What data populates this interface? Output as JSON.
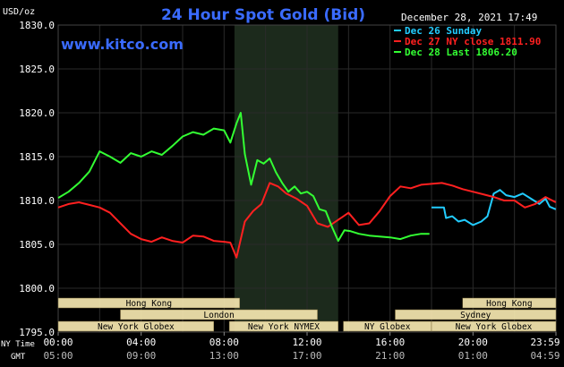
{
  "header": {
    "unit": "USD/oz",
    "title": "24 Hour Spot Gold (Bid)",
    "date": "December 28, 2021 17:49",
    "site": "www.kitco.com"
  },
  "colors": {
    "background": "#000000",
    "grid": "#2a2a2a",
    "shaded": "#1c2a1c",
    "title": "#3a6bff",
    "dec26": "#22ccff",
    "dec27": "#ff2020",
    "dec28": "#33ff33",
    "session_fill": "#f5e7b0",
    "text": "#ffffff"
  },
  "legend": [
    {
      "text": "Dec 26 Sunday",
      "color": "#22ccff"
    },
    {
      "text": "Dec 27 NY close 1811.90",
      "color": "#ff2020"
    },
    {
      "text": "Dec 28 Last 1806.20",
      "color": "#33ff33"
    }
  ],
  "sessions": [
    {
      "label": "Hong Kong",
      "start_h": 0,
      "end_h": 8.75,
      "row": 0
    },
    {
      "label": "Hong Kong",
      "start_h": 19.5,
      "end_h": 24,
      "row": 0
    },
    {
      "label": "London",
      "start_h": 3,
      "end_h": 12.5,
      "row": 1
    },
    {
      "label": "Sydney",
      "start_h": 16.25,
      "end_h": 24,
      "row": 1
    },
    {
      "label": "New York Globex",
      "start_h": 0,
      "end_h": 7.5,
      "row": 2
    },
    {
      "label": "New York NYMEX",
      "start_h": 8.25,
      "end_h": 13.5,
      "row": 2
    },
    {
      "label": "NY Globex",
      "start_h": 13.75,
      "end_h": 18,
      "row": 2
    },
    {
      "label": "New York Globex",
      "start_h": 18,
      "end_h": 24,
      "row": 2
    }
  ],
  "time_axis": {
    "row1_label": "NY Time",
    "row2_label": "GMT",
    "ny_ticks": [
      "00:00",
      "04:00",
      "08:00",
      "12:00",
      "16:00",
      "20:00",
      "23:59"
    ],
    "gmt_ticks": [
      "05:00",
      "09:00",
      "13:00",
      "17:00",
      "21:00",
      "01:00",
      "04:59"
    ]
  },
  "chart_data": {
    "type": "line",
    "title": "24 Hour Spot Gold (Bid)",
    "ylabel": "USD/oz",
    "xlabel": "NY Time",
    "ylim": [
      1795,
      1830
    ],
    "xlim": [
      0,
      24
    ],
    "yticks": [
      "1830.0",
      "1825.0",
      "1820.0",
      "1815.0",
      "1810.0",
      "1805.0",
      "1800.0",
      "1795.0"
    ],
    "shaded_region_h": [
      8.5,
      13.5
    ],
    "grid": true,
    "series": [
      {
        "name": "Dec 26 Sunday",
        "color": "#22ccff",
        "x": [
          18.0,
          18.6,
          18.7,
          19.0,
          19.3,
          19.6,
          20.0,
          20.4,
          20.7,
          21.0,
          21.3,
          21.6,
          22.0,
          22.4,
          22.8,
          23.2,
          23.5,
          23.7,
          23.99
        ],
        "y": [
          1809.2,
          1809.2,
          1808.0,
          1808.2,
          1807.6,
          1807.8,
          1807.2,
          1807.6,
          1808.2,
          1810.8,
          1811.2,
          1810.6,
          1810.4,
          1810.8,
          1810.2,
          1809.6,
          1810.2,
          1809.3,
          1809.0
        ]
      },
      {
        "name": "Dec 27 NY close 1811.90",
        "color": "#ff2020",
        "x": [
          0,
          0.5,
          1,
          1.5,
          2,
          2.5,
          3,
          3.5,
          4,
          4.5,
          5,
          5.5,
          6,
          6.5,
          7,
          7.5,
          8,
          8.3,
          8.6,
          9,
          9.4,
          9.8,
          10.2,
          10.6,
          11,
          11.5,
          12,
          12.5,
          13,
          13.5,
          14,
          14.5,
          15,
          15.5,
          16,
          16.5,
          17,
          17.5,
          18,
          18.5,
          19,
          19.5,
          20,
          20.5,
          21,
          21.5,
          22,
          22.5,
          23,
          23.5,
          23.99
        ],
        "y": [
          1809.2,
          1809.6,
          1809.8,
          1809.5,
          1809.2,
          1808.6,
          1807.4,
          1806.2,
          1805.6,
          1805.3,
          1805.8,
          1805.4,
          1805.2,
          1806.0,
          1805.9,
          1805.4,
          1805.3,
          1805.2,
          1803.5,
          1807.6,
          1808.8,
          1809.6,
          1812.0,
          1811.6,
          1810.8,
          1810.2,
          1809.4,
          1807.4,
          1807.0,
          1807.8,
          1808.6,
          1807.2,
          1807.4,
          1808.8,
          1810.5,
          1811.6,
          1811.4,
          1811.8,
          1811.9,
          1812.0,
          1811.7,
          1811.3,
          1811.0,
          1810.7,
          1810.4,
          1810.0,
          1810.0,
          1809.2,
          1809.6,
          1810.4,
          1809.8
        ]
      },
      {
        "name": "Dec 28 Last 1806.20",
        "color": "#33ff33",
        "x": [
          0,
          0.5,
          1,
          1.5,
          2,
          2.5,
          3,
          3.5,
          4,
          4.5,
          5,
          5.5,
          6,
          6.5,
          7,
          7.5,
          8,
          8.3,
          8.6,
          8.8,
          9.0,
          9.3,
          9.6,
          9.9,
          10.2,
          10.5,
          10.8,
          11.1,
          11.4,
          11.7,
          12,
          12.3,
          12.6,
          12.9,
          13.2,
          13.5,
          13.8,
          14.1,
          14.5,
          15,
          15.5,
          16,
          16.5,
          17,
          17.5,
          17.9
        ],
        "y": [
          1810.3,
          1811.0,
          1812.0,
          1813.3,
          1815.6,
          1815.0,
          1814.3,
          1815.4,
          1815.0,
          1815.6,
          1815.2,
          1816.2,
          1817.3,
          1817.8,
          1817.5,
          1818.2,
          1818.0,
          1816.6,
          1818.8,
          1820.0,
          1815.3,
          1811.8,
          1814.6,
          1814.2,
          1814.8,
          1813.2,
          1812.0,
          1811.0,
          1811.6,
          1810.8,
          1811.0,
          1810.5,
          1809.0,
          1808.8,
          1807.0,
          1805.4,
          1806.6,
          1806.5,
          1806.2,
          1806.0,
          1805.9,
          1805.8,
          1805.6,
          1806.0,
          1806.2,
          1806.2
        ]
      }
    ]
  }
}
